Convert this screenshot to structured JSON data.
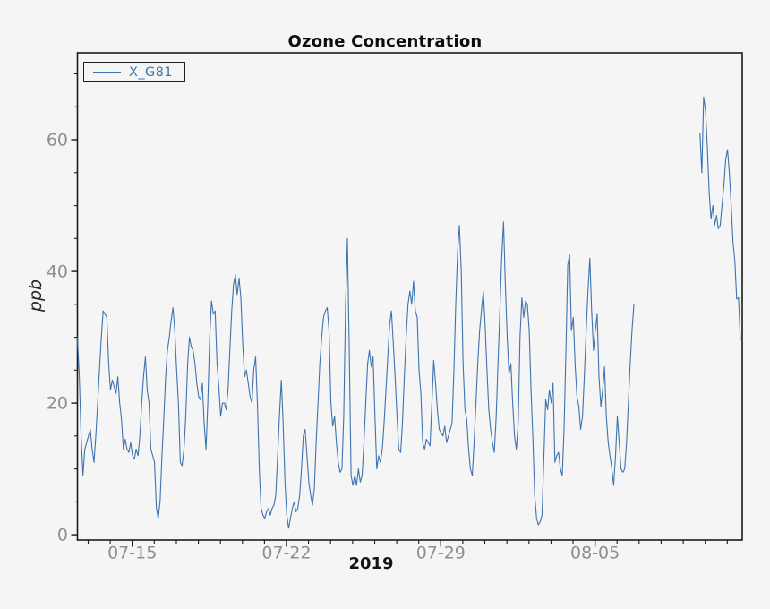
{
  "chart_data": {
    "type": "line",
    "title": "Ozone Concentration",
    "xlabel": "2019",
    "ylabel": "ppb",
    "legend_position": "upper left",
    "grid": false,
    "background_color": "#f5f5f6",
    "line_color": "#3f73ae",
    "tick_label_color": "#8e8e8e",
    "ylim": [
      -0.8,
      73.2
    ],
    "y_major_ticks": [
      0,
      20,
      40,
      60
    ],
    "y_minor_step": 5,
    "y_minor_max": 70,
    "x_hours_max": 724,
    "x_unit": "hours from left edge of plot (approx. 2019-07-12 13:00)",
    "x_day_tick_first_hour": 11.7,
    "x_day_tick_step_hours": 24,
    "x_day_tick_count": 30,
    "x_major_ticks": [
      {
        "hour": 59.7,
        "label": "07-15"
      },
      {
        "hour": 227.7,
        "label": "07-22"
      },
      {
        "hour": 395.7,
        "label": "07-29"
      },
      {
        "hour": 563.7,
        "label": "08-05"
      }
    ],
    "legend": [
      {
        "label": "X_G81",
        "color": "#3f73ae"
      }
    ],
    "series": [
      {
        "name": "X_G81",
        "color": "#3f73ae",
        "step_hours": 2,
        "unit": "ppb",
        "values": [
          30,
          24,
          15,
          9,
          13,
          14,
          15,
          16,
          13,
          11,
          15,
          20,
          25,
          30,
          34,
          33.5,
          33,
          26,
          22,
          23.5,
          22.5,
          21.5,
          24,
          20,
          17.5,
          13,
          14.5,
          13,
          12.5,
          14,
          12,
          11.5,
          13,
          12,
          15,
          20,
          24,
          27,
          22,
          20,
          13,
          12,
          11,
          4,
          2.5,
          5,
          12,
          17.5,
          24,
          28,
          30,
          32.5,
          34.5,
          31,
          25,
          20,
          11,
          10.5,
          13,
          18,
          26,
          30,
          28.5,
          28,
          26,
          23,
          21,
          20.5,
          23,
          17,
          13,
          20,
          30,
          35.5,
          33.5,
          34,
          26,
          22.5,
          18,
          20,
          20,
          19,
          22,
          28,
          34,
          38,
          39.5,
          36.5,
          39,
          36,
          29,
          24,
          25,
          23,
          21,
          20,
          25,
          27,
          20,
          10,
          4,
          3,
          2.5,
          3.5,
          4,
          3,
          4,
          4.5,
          6,
          12,
          18,
          23.5,
          17,
          8,
          3,
          1,
          2.5,
          4,
          5,
          3.5,
          4,
          6,
          10,
          15,
          16,
          12,
          8,
          6,
          4.5,
          7,
          14,
          20,
          26,
          30,
          33,
          34,
          34.5,
          31,
          20,
          16.5,
          18,
          14,
          11,
          9.5,
          10,
          18,
          35,
          45,
          28,
          9,
          7.5,
          9,
          7.5,
          10,
          8,
          9,
          14,
          20,
          26,
          28,
          25.5,
          27,
          18,
          10,
          12,
          11,
          13,
          17,
          22,
          27,
          32,
          34,
          29,
          24,
          18,
          13,
          12.5,
          17,
          24,
          30,
          35,
          37,
          35,
          38.5,
          34,
          33,
          25,
          21.5,
          14,
          13,
          14.5,
          14,
          13.5,
          20,
          26.5,
          23,
          19,
          16,
          15.5,
          15,
          16.5,
          14,
          15,
          16,
          17,
          25,
          35,
          43,
          47,
          40,
          26,
          19,
          17.5,
          13,
          10,
          9,
          14,
          20,
          26,
          31,
          34,
          37,
          32,
          25,
          19,
          16,
          14,
          12.5,
          18,
          26,
          34,
          42,
          47.5,
          38,
          30,
          24.5,
          26,
          20,
          15,
          13,
          17,
          30,
          36,
          33,
          35.5,
          35,
          31,
          22,
          14.5,
          6,
          2.5,
          1.5,
          2,
          3,
          12,
          20.5,
          19,
          22,
          20,
          23,
          11,
          12,
          12.5,
          10,
          9,
          16,
          28,
          41,
          42.5,
          31,
          33,
          26,
          21,
          19.5,
          16,
          18,
          24,
          31,
          37,
          42,
          34,
          28,
          31,
          33.5,
          24,
          19.5,
          22,
          25.5,
          18,
          14,
          12,
          10,
          7.5,
          12,
          18,
          14,
          10,
          9.5,
          10,
          14,
          20,
          26,
          31,
          35,
          null,
          null,
          null,
          null,
          null,
          null,
          null,
          null,
          null,
          null,
          null,
          null,
          null,
          null,
          null,
          null,
          null,
          null,
          null,
          null,
          null,
          null,
          null,
          null,
          null,
          null,
          null,
          null,
          null,
          null,
          null,
          null,
          null,
          null,
          null,
          61,
          55,
          66.5,
          64.5,
          59,
          52,
          48,
          50,
          47,
          48.5,
          46.5,
          47,
          50,
          53,
          57,
          58.5,
          55,
          50,
          44.5,
          41.5,
          35.8,
          36,
          29.5
        ]
      }
    ]
  }
}
